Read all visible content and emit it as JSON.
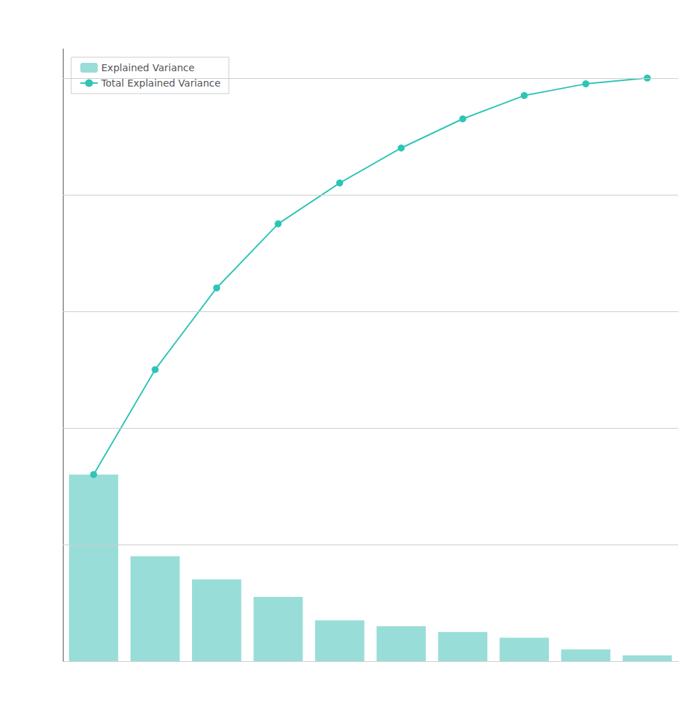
{
  "chart_data": {
    "type": "bar",
    "categories": [
      null,
      null,
      null,
      null,
      null,
      null,
      null,
      null,
      null,
      null
    ],
    "series": [
      {
        "name": "Explained Variance",
        "type": "bar",
        "color": "#99DDD8",
        "values": [
          0.32,
          0.18,
          0.14,
          0.11,
          0.07,
          0.06,
          0.05,
          0.04,
          0.02,
          0.01
        ]
      },
      {
        "name": "Total Explained Variance",
        "type": "line",
        "color": "#2EC4B6",
        "marker": "circle",
        "values": [
          0.32,
          0.5,
          0.64,
          0.75,
          0.82,
          0.88,
          0.93,
          0.97,
          0.99,
          1.0
        ]
      }
    ],
    "ylim": [
      0,
      1.05
    ],
    "yticks": [
      0.0,
      0.2,
      0.4,
      0.6,
      0.8,
      1.0
    ],
    "grid": true,
    "tick_labels": false,
    "legend": "upper left"
  }
}
